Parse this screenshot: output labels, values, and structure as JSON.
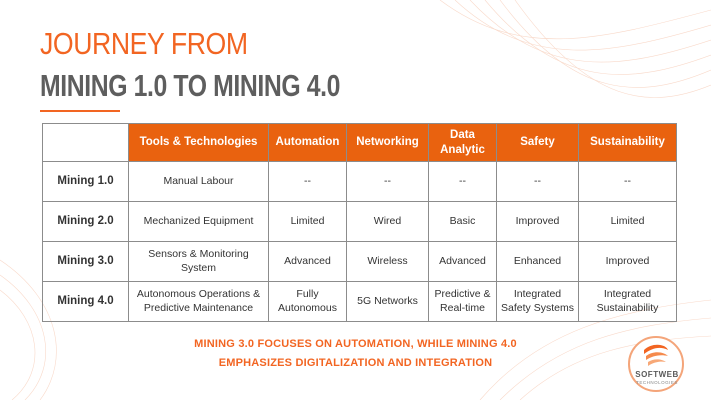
{
  "title": {
    "line1": "JOURNEY FROM",
    "line2": "MINING 1.0 TO MINING 4.0"
  },
  "table": {
    "headers": [
      "",
      "Tools & Technologies",
      "Automation",
      "Networking",
      "Data Analytic",
      "Safety",
      "Sustainability"
    ],
    "rows": [
      {
        "label": "Mining 1.0",
        "cells": [
          "Manual Labour",
          "--",
          "--",
          "--",
          "--",
          "--"
        ]
      },
      {
        "label": "Mining 2.0",
        "cells": [
          "Mechanized Equipment",
          "Limited",
          "Wired",
          "Basic",
          "Improved",
          "Limited"
        ]
      },
      {
        "label": "Mining 3.0",
        "cells": [
          "Sensors & Monitoring System",
          "Advanced",
          "Wireless",
          "Advanced",
          "Enhanced",
          "Improved"
        ]
      },
      {
        "label": "Mining 4.0",
        "cells": [
          "Autonomous Operations & Predictive Maintenance",
          "Fully Autonomous",
          "5G Networks",
          "Predictive & Real-time",
          "Integrated Safety Systems",
          "Integrated Sustainability"
        ]
      }
    ]
  },
  "footer": {
    "line1": "MINING 3.0 FOCUSES ON AUTOMATION, WHILE MINING 4.0",
    "line2": "EMPHASIZES DIGITALIZATION AND INTEGRATION"
  },
  "logo": {
    "name": "SOFTWEB",
    "sub": "TECHNOLOGIES"
  },
  "colors": {
    "accent": "#f26522",
    "header_bg": "#e9620f",
    "title_gray": "#5e5e5e",
    "border": "#8c8c8c"
  }
}
